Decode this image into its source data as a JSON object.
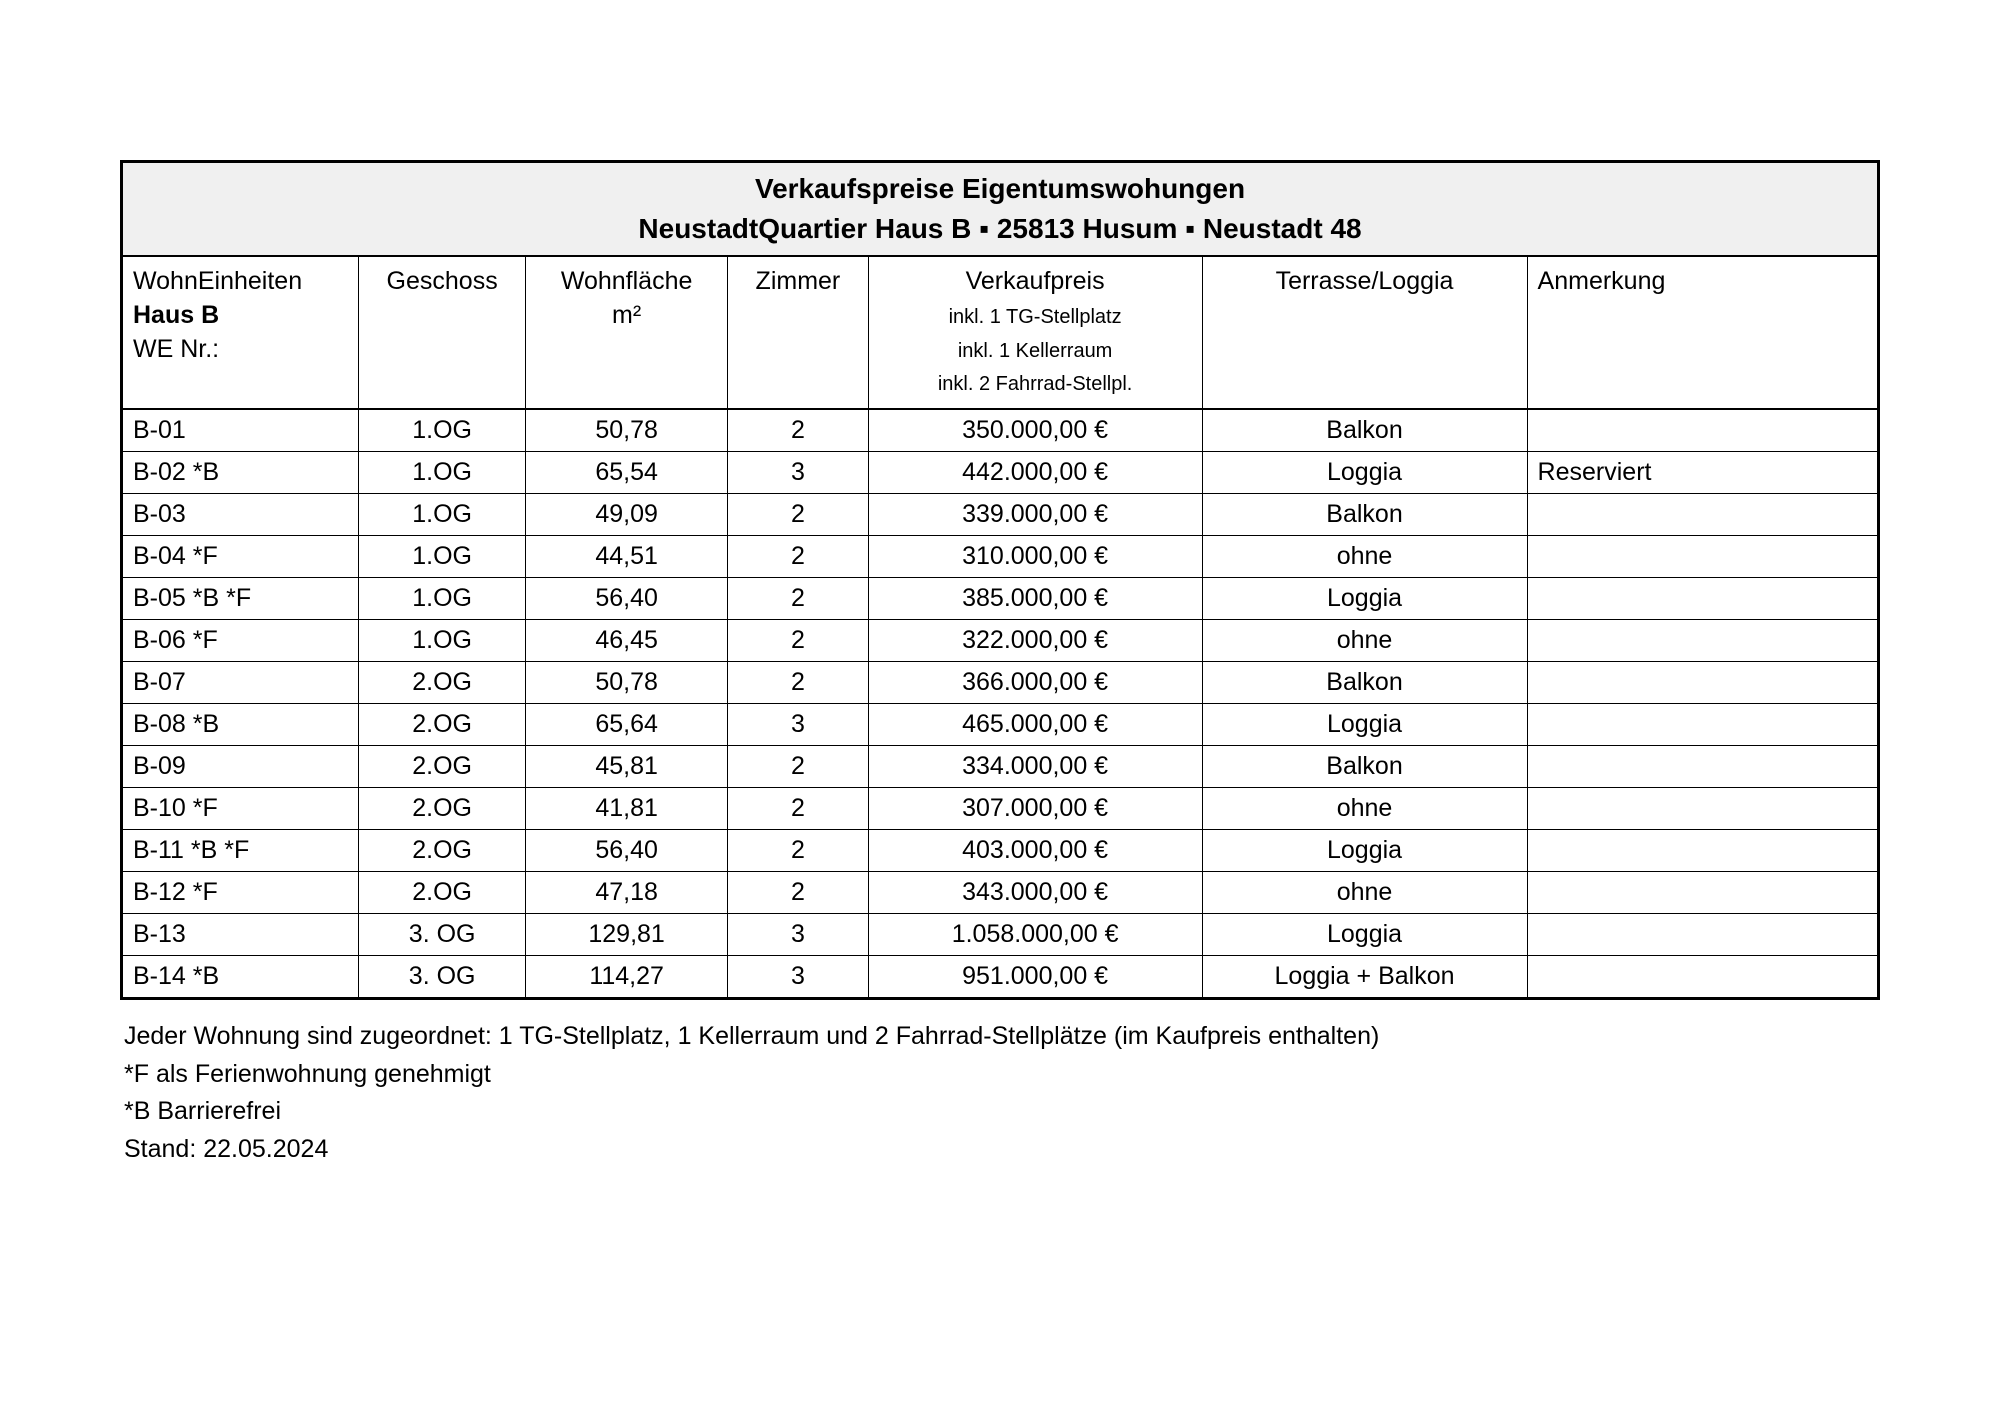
{
  "title": "Verkaufspreise Eigentumswohungen",
  "subtitle_parts": [
    "NeustadtQuartier Haus B",
    "25813 Husum",
    "Neustadt 48"
  ],
  "subtitle_sep": "  ▪  ",
  "columns": {
    "unit": {
      "line1": "WohnEinheiten",
      "line2": "Haus B",
      "line3": "WE Nr.:"
    },
    "floor": "Geschoss",
    "area": {
      "line1": "Wohnfläche",
      "line2": "m²"
    },
    "rooms": "Zimmer",
    "price": {
      "line1": "Verkaufpreis",
      "sub1": "inkl. 1 TG-Stellplatz",
      "sub2": "inkl. 1 Kellerraum",
      "sub3": "inkl. 2 Fahrrad-Stellpl."
    },
    "terrace": "Terrasse/Loggia",
    "note": "Anmerkung"
  },
  "rows": [
    {
      "unit": "B-01",
      "floor": "1.OG",
      "area": "50,78",
      "rooms": "2",
      "price": "350.000,00 €",
      "terrace": "Balkon",
      "note": ""
    },
    {
      "unit": "B-02  *B",
      "floor": "1.OG",
      "area": "65,54",
      "rooms": "3",
      "price": "442.000,00 €",
      "terrace": "Loggia",
      "note": "Reserviert"
    },
    {
      "unit": "B-03",
      "floor": "1.OG",
      "area": "49,09",
      "rooms": "2",
      "price": "339.000,00 €",
      "terrace": "Balkon",
      "note": ""
    },
    {
      "unit": "B-04  *F",
      "floor": "1.OG",
      "area": "44,51",
      "rooms": "2",
      "price": "310.000,00 €",
      "terrace": "ohne",
      "note": ""
    },
    {
      "unit": "B-05  *B  *F",
      "floor": "1.OG",
      "area": "56,40",
      "rooms": "2",
      "price": "385.000,00 €",
      "terrace": "Loggia",
      "note": ""
    },
    {
      "unit": "B-06  *F",
      "floor": "1.OG",
      "area": "46,45",
      "rooms": "2",
      "price": "322.000,00 €",
      "terrace": "ohne",
      "note": ""
    },
    {
      "unit": "B-07",
      "floor": "2.OG",
      "area": "50,78",
      "rooms": "2",
      "price": "366.000,00 €",
      "terrace": "Balkon",
      "note": ""
    },
    {
      "unit": "B-08  *B",
      "floor": "2.OG",
      "area": "65,64",
      "rooms": "3",
      "price": "465.000,00 €",
      "terrace": "Loggia",
      "note": ""
    },
    {
      "unit": "B-09",
      "floor": "2.OG",
      "area": "45,81",
      "rooms": "2",
      "price": "334.000,00 €",
      "terrace": "Balkon",
      "note": ""
    },
    {
      "unit": "B-10  *F",
      "floor": "2.OG",
      "area": "41,81",
      "rooms": "2",
      "price": "307.000,00 €",
      "terrace": "ohne",
      "note": ""
    },
    {
      "unit": "B-11  *B  *F",
      "floor": "2.OG",
      "area": "56,40",
      "rooms": "2",
      "price": "403.000,00 €",
      "terrace": "Loggia",
      "note": ""
    },
    {
      "unit": "B-12  *F",
      "floor": "2.OG",
      "area": "47,18",
      "rooms": "2",
      "price": "343.000,00 €",
      "terrace": "ohne",
      "note": ""
    },
    {
      "unit": "B-13",
      "floor": "3. OG",
      "area": "129,81",
      "rooms": "3",
      "price": "1.058.000,00 €",
      "terrace": "Loggia",
      "note": ""
    },
    {
      "unit": "B-14  *B",
      "floor": "3. OG",
      "area": "114,27",
      "rooms": "3",
      "price": "951.000,00 €",
      "terrace": "Loggia + Balkon",
      "note": ""
    }
  ],
  "footnotes": {
    "line1": "Jeder Wohnung sind zugeordnet: 1 TG-Stellplatz, 1 Kellerraum und 2 Fahrrad-Stellplätze (im Kaufpreis enthalten)",
    "line2": "*F  als Ferienwohnung genehmigt",
    "line3": "*B  Barrierefrei",
    "line4": "Stand: 22.05.2024"
  }
}
